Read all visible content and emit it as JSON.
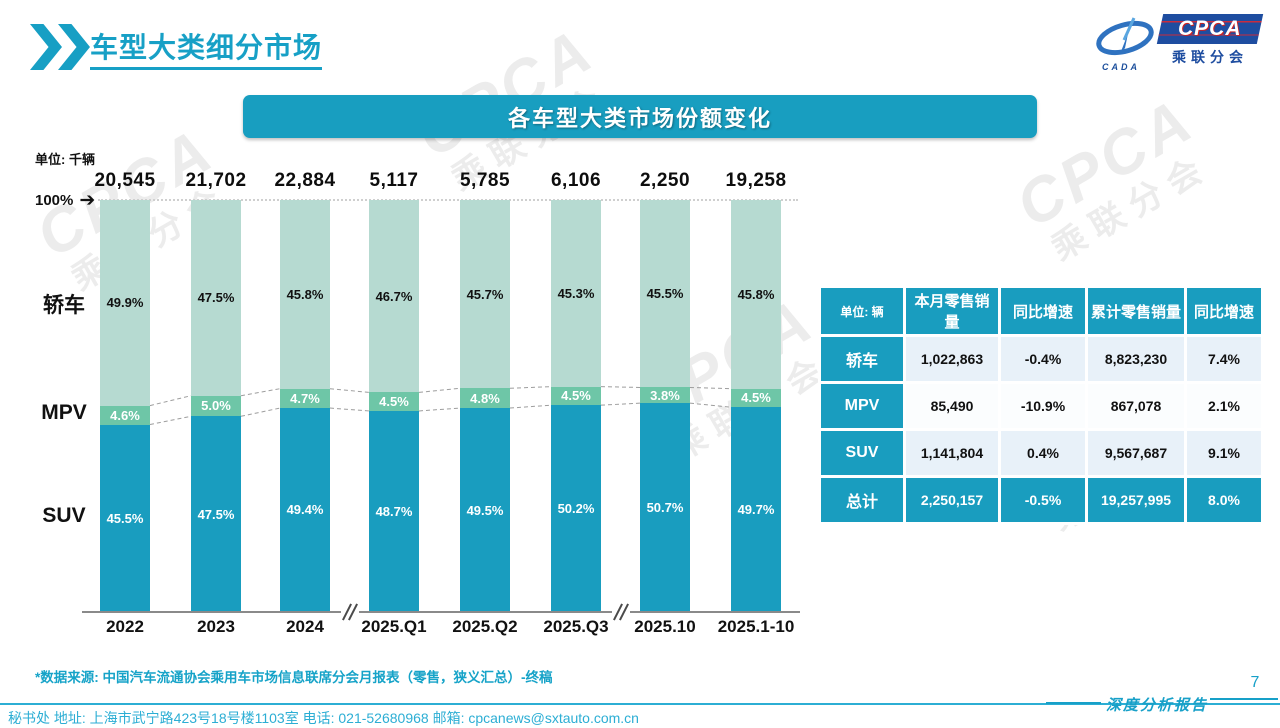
{
  "header": {
    "title": "车型大类细分市场"
  },
  "logo": {
    "cpca": "CPCA",
    "sub": "乘联分会",
    "cada": "CADA"
  },
  "banner": {
    "title": "各车型大类市场份额变化"
  },
  "watermark": {
    "text_primary": "CPCA",
    "text_secondary": "乘联分会"
  },
  "chart_data": {
    "type": "bar",
    "subtype": "stacked-100-percent",
    "unit_label": "单位: 千辆",
    "axis_marker": "100%",
    "categories": [
      "2022",
      "2023",
      "2024",
      "2025.Q1",
      "2025.Q2",
      "2025.Q3",
      "2025.10",
      "2025.1-10"
    ],
    "totals": [
      "20,545",
      "21,702",
      "22,884",
      "5,117",
      "5,785",
      "6,106",
      "2,250",
      "19,258"
    ],
    "series": [
      {
        "name": "轿车",
        "color": "#b6dad1",
        "label_color": "#111111",
        "values": [
          49.9,
          47.5,
          45.8,
          46.7,
          45.7,
          45.3,
          45.5,
          45.8
        ]
      },
      {
        "name": "MPV",
        "color": "#6ec6a7",
        "label_color": "#ffffff",
        "values": [
          4.6,
          5.0,
          4.7,
          4.5,
          4.8,
          4.5,
          3.8,
          4.5
        ]
      },
      {
        "name": "SUV",
        "color": "#199dbf",
        "label_color": "#ffffff",
        "values": [
          45.5,
          47.5,
          49.4,
          48.7,
          49.5,
          50.2,
          50.7,
          49.7
        ]
      }
    ],
    "ylim": [
      0,
      100
    ],
    "grid": false,
    "axis_breaks_after": [
      2,
      5
    ]
  },
  "table": {
    "unit_header": "单位: 辆",
    "columns": [
      "本月零售销量",
      "同比增速",
      "累计零售销量",
      "同比增速"
    ],
    "rows": [
      {
        "label": "轿车",
        "cells": [
          "1,022,863",
          "-0.4%",
          "8,823,230",
          "7.4%"
        ],
        "is_total": false
      },
      {
        "label": "MPV",
        "cells": [
          "85,490",
          "-10.9%",
          "867,078",
          "2.1%"
        ],
        "is_total": false
      },
      {
        "label": "SUV",
        "cells": [
          "1,141,804",
          "0.4%",
          "9,567,687",
          "9.1%"
        ],
        "is_total": false
      },
      {
        "label": "总计",
        "cells": [
          "2,250,157",
          "-0.5%",
          "19,257,995",
          "8.0%"
        ],
        "is_total": true
      }
    ]
  },
  "footnote": "*数据来源: 中国汽车流通协会乘用车市场信息联席分会月报表（零售，狭义汇总）-终稿",
  "footer": {
    "contact": "秘书处  地址: 上海市武宁路423号18号楼1103室 电话: 021-52680968  邮箱: cpcanews@sxtauto.com.cn",
    "report_label": "深度分析报告",
    "page": "7"
  },
  "colors": {
    "accent_teal": "#199dbf",
    "title_teal": "#17a0c6",
    "footer_teal": "#2caed4",
    "sedan_fill": "#b6dad1",
    "mpv_fill": "#6ec6a7",
    "suv_fill": "#199dbf",
    "logo_blue": "#1e4da0"
  }
}
